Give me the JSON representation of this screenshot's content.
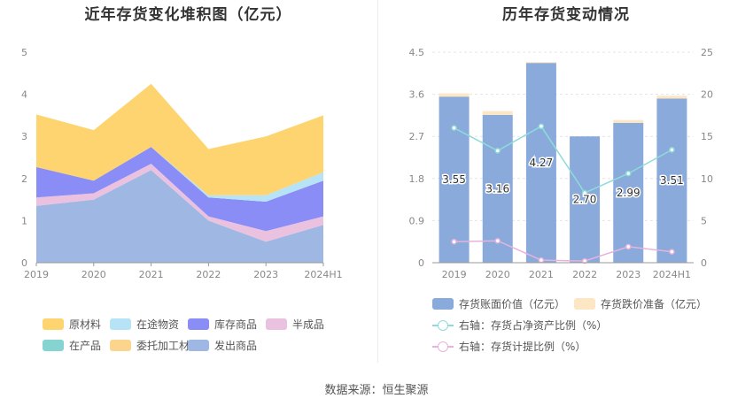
{
  "left_title": "近年存货变化堆积图（亿元）",
  "right_title": "历年存货变动情况",
  "source": "数据来源：恒生聚源",
  "chart_data": [
    {
      "type": "area",
      "title": "近年存货变化堆积图（亿元）",
      "stacked": true,
      "x": [
        "2019",
        "2020",
        "2021",
        "2022",
        "2023",
        "2024H1"
      ],
      "ylim": [
        0,
        5
      ],
      "yticks": [
        0,
        1,
        2,
        3,
        4,
        5
      ],
      "grid": false,
      "legend_position": "bottom",
      "series": [
        {
          "name": "发出商品",
          "color": "#9fb8e3",
          "values": [
            1.35,
            1.5,
            2.2,
            1.0,
            0.5,
            0.9
          ]
        },
        {
          "name": "委托加工材料",
          "color": "#fbd58e",
          "values": [
            0.0,
            0.0,
            0.0,
            0.0,
            0.0,
            0.0
          ]
        },
        {
          "name": "在产品",
          "color": "#86d4d1",
          "values": [
            0.0,
            0.0,
            0.0,
            0.0,
            0.0,
            0.0
          ]
        },
        {
          "name": "半成品",
          "color": "#eac2e0",
          "values": [
            0.2,
            0.15,
            0.15,
            0.1,
            0.25,
            0.2
          ]
        },
        {
          "name": "库存商品",
          "color": "#8a8df5",
          "values": [
            0.72,
            0.3,
            0.4,
            0.45,
            0.7,
            0.85
          ]
        },
        {
          "name": "在途物资",
          "color": "#b6e3f6",
          "values": [
            0.0,
            0.0,
            0.0,
            0.05,
            0.15,
            0.2
          ]
        },
        {
          "name": "原材料",
          "color": "#fdd46f",
          "values": [
            1.25,
            1.2,
            1.5,
            1.1,
            1.4,
            1.35
          ]
        }
      ],
      "legend_order": [
        "原材料",
        "在途物资",
        "库存商品",
        "半成品",
        "在产品",
        "委托加工材料",
        "发出商品"
      ]
    },
    {
      "type": "bar",
      "title": "历年存货变动情况",
      "categories": [
        "2019",
        "2020",
        "2021",
        "2022",
        "2023",
        "2024H1"
      ],
      "ylim_left": [
        0,
        4.5
      ],
      "yticks_left": [
        "0",
        "0.9",
        "1.8",
        "2.7",
        "3.6",
        "4.5"
      ],
      "ylim_right": [
        0,
        25
      ],
      "yticks_right": [
        "0",
        "5",
        "10",
        "15",
        "20",
        "25"
      ],
      "grid": true,
      "legend_position": "bottom",
      "series": [
        {
          "name": "存货账面价值（亿元）",
          "kind": "bar",
          "axis": "left",
          "color": "#8aaadc",
          "values": [
            3.55,
            3.16,
            4.27,
            2.7,
            2.99,
            3.51
          ],
          "labels": [
            "3.55",
            "3.16",
            "4.27",
            "2.70",
            "2.99",
            "3.51"
          ]
        },
        {
          "name": "存货跌价准备（亿元）",
          "kind": "bar",
          "axis": "left",
          "color": "#fde6c4",
          "values": [
            0.07,
            0.08,
            0.02,
            0.0,
            0.06,
            0.06
          ]
        },
        {
          "name": "右轴：存货占净资产比例（%）",
          "kind": "line",
          "axis": "right",
          "color": "#8fdbd8",
          "values": [
            16.0,
            13.3,
            16.2,
            8.3,
            10.6,
            13.4
          ]
        },
        {
          "name": "右轴：存货计提比例（%）",
          "kind": "line",
          "axis": "right",
          "color": "#e6b3dc",
          "values": [
            2.5,
            2.6,
            0.3,
            0.2,
            1.9,
            1.3
          ]
        }
      ]
    }
  ]
}
